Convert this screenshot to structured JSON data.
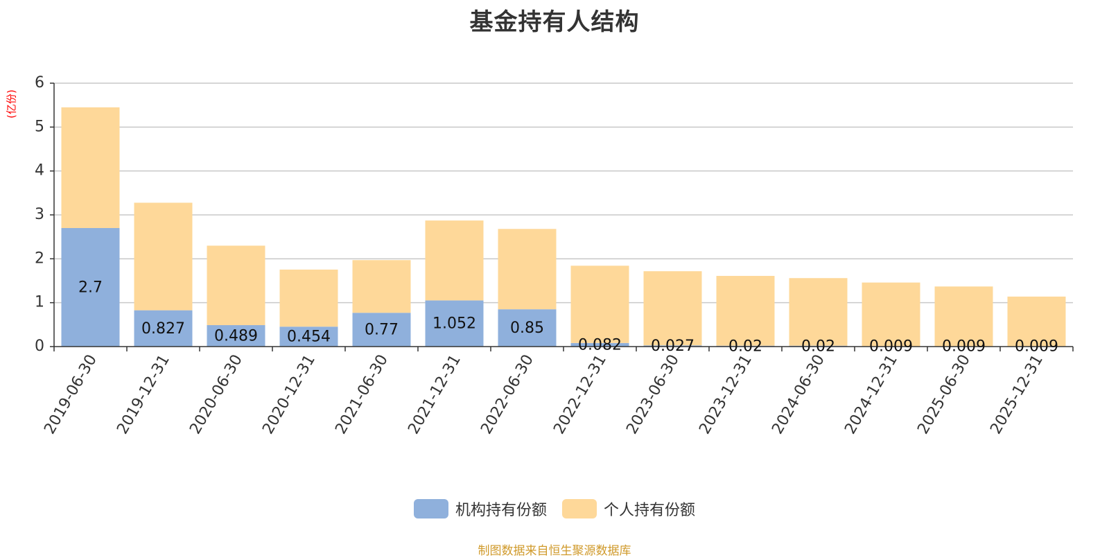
{
  "chart_data": {
    "type": "bar",
    "stacked": true,
    "title": "基金持有人结构",
    "ylabel": "(亿份)",
    "ylim": [
      0,
      6
    ],
    "yticks": [
      0,
      1,
      2,
      3,
      4,
      5,
      6
    ],
    "grid": true,
    "legend_position": "bottom",
    "categories": [
      "2019-06-30",
      "2019-12-31",
      "2020-06-30",
      "2020-12-31",
      "2021-06-30",
      "2021-12-31",
      "2022-06-30",
      "2022-12-31",
      "2023-06-30",
      "2023-12-31",
      "2024-06-30",
      "2024-12-31",
      "2025-06-30",
      "2025-12-31"
    ],
    "series": [
      {
        "name": "机构持有份额",
        "color": "#8fb0dc",
        "values": [
          2.7,
          0.827,
          0.489,
          0.454,
          0.77,
          1.052,
          0.85,
          0.082,
          0.027,
          0.02,
          0.02,
          0.009,
          0.009,
          0.009
        ],
        "labels": [
          "2.7",
          "0.827",
          "0.489",
          "0.454",
          "0.77",
          "1.052",
          "0.85",
          "0.082",
          "0.027",
          "0.02",
          "0.02",
          "0.009",
          "0.009",
          "0.009"
        ]
      },
      {
        "name": "个人持有份额",
        "color": "#fed899",
        "values": [
          2.75,
          2.45,
          1.81,
          1.3,
          1.2,
          1.82,
          1.83,
          1.76,
          1.69,
          1.59,
          1.54,
          1.45,
          1.36,
          1.13
        ]
      }
    ]
  },
  "source_note": "制图数据来自恒生聚源数据库"
}
